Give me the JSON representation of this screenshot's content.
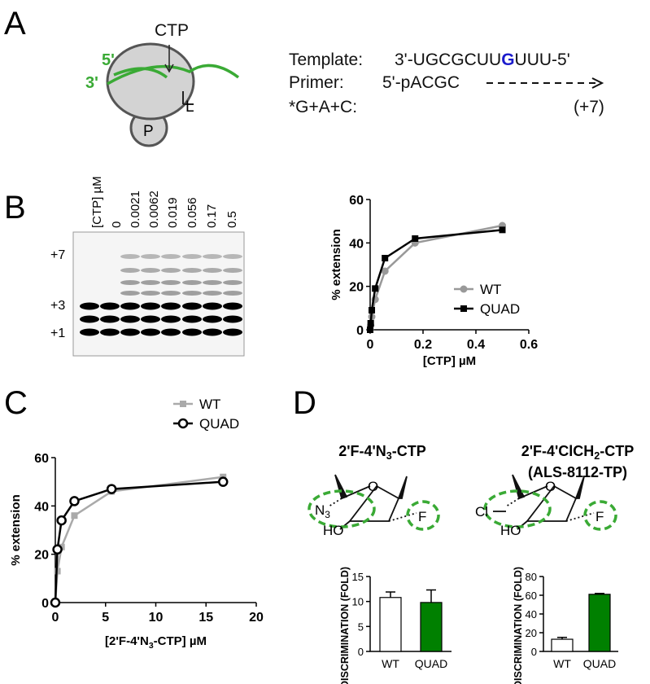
{
  "panel_labels": [
    "A",
    "B",
    "C",
    "D"
  ],
  "panel_a": {
    "ctp": "CTP",
    "five": "5'",
    "three": "3'",
    "l": "L",
    "p": "P",
    "template_label": "Template:",
    "template_pre": "3'-UGCGCUU",
    "template_mid": "G",
    "template_post": "UUU-5'",
    "primer_label": "Primer:",
    "primer": "5'-pACGC",
    "ntp_label": "*G+A+C:",
    "product": "(+7)"
  },
  "gel": {
    "header": "[CTP] µM",
    "lanes": [
      "0",
      "0.0021",
      "0.0062",
      "0.019",
      "0.056",
      "0.17",
      "0.5"
    ],
    "bands": [
      "+7",
      "+3",
      "+1"
    ]
  },
  "structures": [
    {
      "o": "O",
      "sub": "N",
      "sub_idx": "3",
      "ho": "HO",
      "f": "F"
    },
    {
      "o": "O",
      "sub": "Cl",
      "ho": "HO",
      "f": "F"
    }
  ],
  "chart_data": [
    {
      "type": "line",
      "xlabel": [
        "[CTP] µM"
      ],
      "ylabel": "% extension",
      "xlim": [
        0,
        0.6
      ],
      "xticks": [
        0,
        0.2,
        0.4,
        0.6
      ],
      "ylim": [
        0,
        60
      ],
      "yticks": [
        0,
        20,
        40,
        60
      ],
      "x": [
        0,
        0.0021,
        0.0062,
        0.019,
        0.056,
        0.17,
        0.5
      ],
      "series": [
        {
          "name": "WT",
          "color": "#999999",
          "marker": "circle",
          "values": [
            0,
            2,
            6,
            14,
            27,
            40,
            48
          ]
        },
        {
          "name": "QUAD",
          "color": "#000000",
          "marker": "square",
          "values": [
            0,
            3,
            9,
            19,
            33,
            42,
            46
          ]
        }
      ],
      "legend": "right"
    },
    {
      "type": "line",
      "xlabel": [
        "[2'F-4'N",
        "3",
        "-CTP] µM"
      ],
      "ylabel": "% extension",
      "xlim": [
        0,
        20
      ],
      "xticks": [
        0,
        5,
        10,
        15,
        20
      ],
      "ylim": [
        0,
        60
      ],
      "yticks": [
        0,
        20,
        40,
        60
      ],
      "x": [
        0,
        0.21,
        0.62,
        1.9,
        5.6,
        16.7
      ],
      "series": [
        {
          "name": "WT",
          "color": "#aaaaaa",
          "marker": "square",
          "values": [
            0,
            13,
            23,
            36,
            46,
            52
          ]
        },
        {
          "name": "QUAD",
          "color": "#000000",
          "marker": "open-circle",
          "values": [
            0,
            22,
            34,
            42,
            47,
            50
          ]
        }
      ],
      "legend": "right"
    },
    {
      "type": "bar",
      "title": [
        "2'F-4'N",
        "3",
        "-CTP"
      ],
      "ylabel": "DISCRIMINATION (FOLD)",
      "categories": [
        "WT",
        "QUAD"
      ],
      "values": [
        10.8,
        9.8
      ],
      "errors": [
        1.1,
        2.5
      ],
      "colors": [
        "#ffffff",
        "#008000"
      ],
      "ylim": [
        0,
        15
      ],
      "yticks": [
        0,
        5,
        10,
        15
      ]
    },
    {
      "type": "bar",
      "title": [
        "2'F-4'ClCH",
        "2",
        "-CTP"
      ],
      "subtitle": "(ALS-8112-TP)",
      "ylabel": "DISCRIMINATION (FOLD)",
      "categories": [
        "WT",
        "QUAD"
      ],
      "values": [
        13,
        61
      ],
      "errors": [
        2,
        1
      ],
      "colors": [
        "#ffffff",
        "#008000"
      ],
      "ylim": [
        0,
        80
      ],
      "yticks": [
        0,
        20,
        40,
        60,
        80
      ]
    }
  ]
}
